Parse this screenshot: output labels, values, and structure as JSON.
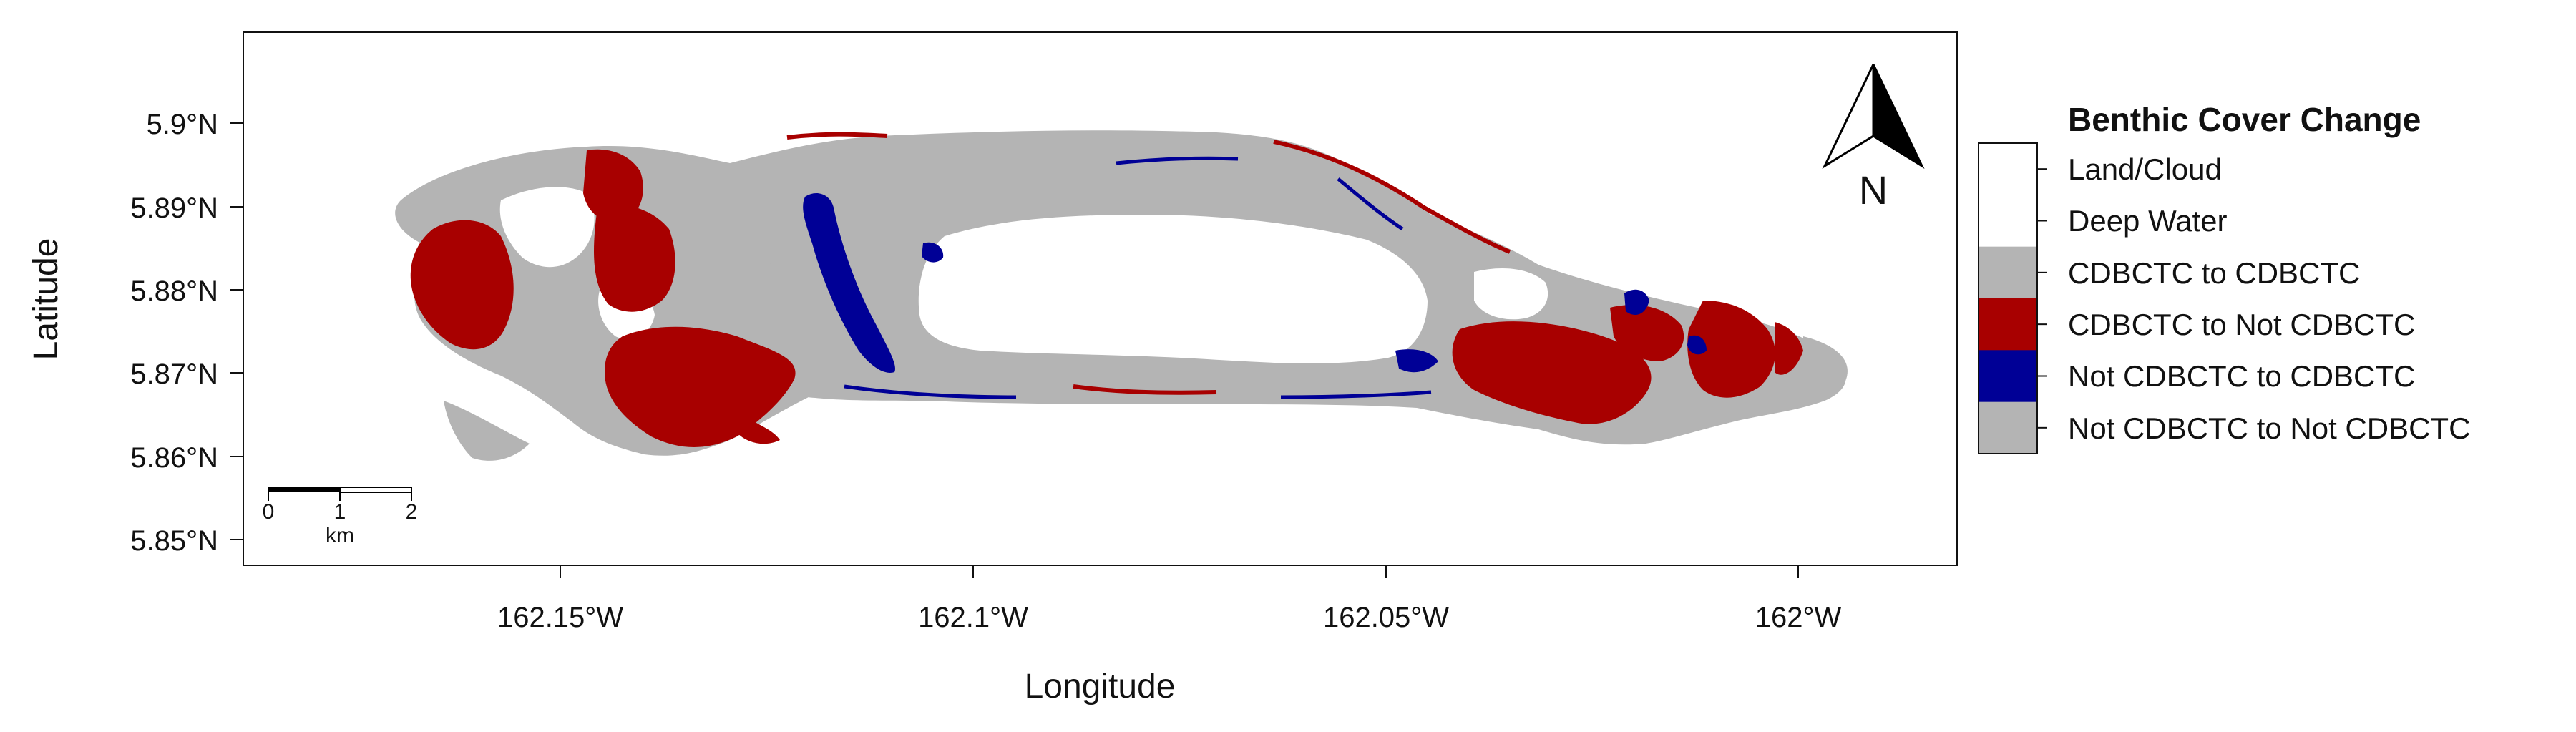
{
  "map": {
    "xlabel": "Longitude",
    "ylabel": "Latitude",
    "x_ticks": [
      "162.15°W",
      "162.1°W",
      "162.05°W",
      "162°W"
    ],
    "y_ticks": [
      "5.9°N",
      "5.89°N",
      "5.88°N",
      "5.87°N",
      "5.86°N",
      "5.85°N"
    ],
    "scale_bar": {
      "ticks": [
        "0",
        "1",
        "2"
      ],
      "unit": "km"
    },
    "north_arrow": {
      "label": "N",
      "icon": "north-arrow-icon"
    }
  },
  "legend": {
    "title": "Benthic Cover Change",
    "items": [
      {
        "label": "Land/Cloud",
        "color": "#ffffff"
      },
      {
        "label": "Deep Water",
        "color": "#ffffff"
      },
      {
        "label": "CDBCTC to CDBCTC",
        "color": "#b4b4b4"
      },
      {
        "label": "CDBCTC to Not CDBCTC",
        "color": "#a80000"
      },
      {
        "label": "Not CDBCTC to CDBCTC",
        "color": "#000096"
      },
      {
        "label": "Not CDBCTC to Not CDBCTC",
        "color": "#b4b4b4"
      }
    ]
  },
  "colors": {
    "gray": "#b4b4b4",
    "red": "#a80000",
    "blue": "#000096",
    "white": "#ffffff"
  }
}
